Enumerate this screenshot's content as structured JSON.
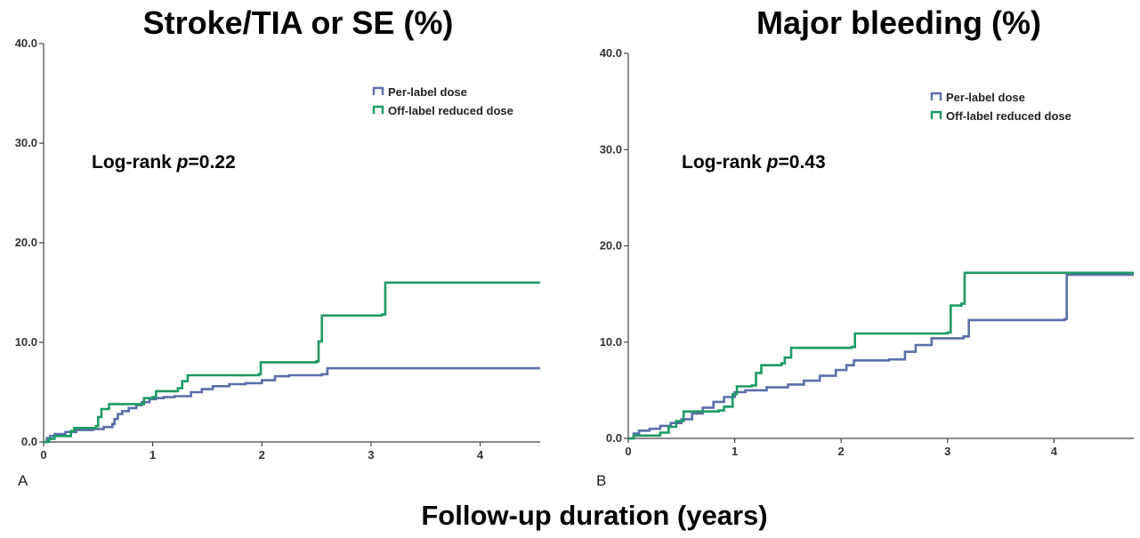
{
  "figure": {
    "xlabel": "Follow-up duration (years)",
    "colors": {
      "per_label": "#5a6fa8",
      "off_label": "#1e9a64"
    }
  },
  "chart_data": [
    {
      "type": "line",
      "panel_label": "A",
      "title": "Stroke/TIA or SE (%)",
      "annotation": {
        "prefix": "Log-rank ",
        "italic": "p",
        "suffix": "=0.22"
      },
      "xlim": [
        0,
        4.55
      ],
      "ylim": [
        0,
        40
      ],
      "x_ticks": [
        0,
        1,
        2,
        3,
        4
      ],
      "y_ticks": [
        0,
        10,
        20,
        30,
        40
      ],
      "y_tick_labels": [
        "0.0",
        "10.0",
        "20.0",
        "30.0",
        "40.0"
      ],
      "legend_position": "top-right",
      "series": [
        {
          "name": "Per-label dose",
          "color": "#5a6fa8",
          "points": [
            [
              0,
              0
            ],
            [
              0.03,
              0.4
            ],
            [
              0.06,
              0.6
            ],
            [
              0.1,
              0.8
            ],
            [
              0.2,
              1.0
            ],
            [
              0.3,
              1.2
            ],
            [
              0.45,
              1.3
            ],
            [
              0.55,
              1.5
            ],
            [
              0.63,
              1.8
            ],
            [
              0.65,
              2.3
            ],
            [
              0.68,
              2.8
            ],
            [
              0.72,
              3.1
            ],
            [
              0.78,
              3.4
            ],
            [
              0.85,
              3.7
            ],
            [
              0.9,
              4.0
            ],
            [
              0.97,
              4.3
            ],
            [
              1.03,
              4.4
            ],
            [
              1.1,
              4.5
            ],
            [
              1.2,
              4.6
            ],
            [
              1.35,
              5.0
            ],
            [
              1.45,
              5.3
            ],
            [
              1.55,
              5.6
            ],
            [
              1.7,
              5.8
            ],
            [
              1.85,
              5.9
            ],
            [
              2.0,
              6.2
            ],
            [
              2.12,
              6.6
            ],
            [
              2.25,
              6.7
            ],
            [
              2.55,
              6.8
            ],
            [
              2.6,
              7.4
            ],
            [
              4.55,
              7.4
            ]
          ]
        },
        {
          "name": "Off-label reduced dose",
          "color": "#1e9a64",
          "points": [
            [
              0,
              0
            ],
            [
              0.05,
              0.3
            ],
            [
              0.1,
              0.6
            ],
            [
              0.25,
              1.1
            ],
            [
              0.28,
              1.4
            ],
            [
              0.48,
              1.6
            ],
            [
              0.5,
              2.5
            ],
            [
              0.53,
              3.3
            ],
            [
              0.6,
              3.8
            ],
            [
              0.9,
              3.8
            ],
            [
              0.92,
              4.4
            ],
            [
              1.0,
              4.5
            ],
            [
              1.03,
              5.1
            ],
            [
              1.23,
              5.4
            ],
            [
              1.27,
              6.1
            ],
            [
              1.32,
              6.7
            ],
            [
              1.97,
              6.8
            ],
            [
              1.99,
              8.0
            ],
            [
              2.5,
              8.1
            ],
            [
              2.52,
              10.1
            ],
            [
              2.55,
              12.7
            ],
            [
              3.1,
              12.8
            ],
            [
              3.13,
              16.0
            ],
            [
              4.55,
              16.0
            ]
          ]
        }
      ]
    },
    {
      "type": "line",
      "panel_label": "B",
      "title": "Major bleeding (%)",
      "annotation": {
        "prefix": "Log-rank ",
        "italic": "p",
        "suffix": "=0.43"
      },
      "xlim": [
        0,
        4.75
      ],
      "ylim": [
        0,
        40
      ],
      "x_ticks": [
        0,
        1,
        2,
        3,
        4
      ],
      "y_ticks": [
        0,
        10,
        20,
        30,
        40
      ],
      "y_tick_labels": [
        "0.0",
        "10.0",
        "20.0",
        "30.0",
        "40.0"
      ],
      "legend_position": "top-right",
      "series": [
        {
          "name": "Per-label dose",
          "color": "#5a6fa8",
          "points": [
            [
              0,
              0
            ],
            [
              0.05,
              0.5
            ],
            [
              0.1,
              0.8
            ],
            [
              0.2,
              1.0
            ],
            [
              0.3,
              1.3
            ],
            [
              0.4,
              1.6
            ],
            [
              0.5,
              2.0
            ],
            [
              0.6,
              2.6
            ],
            [
              0.7,
              3.2
            ],
            [
              0.8,
              3.8
            ],
            [
              0.9,
              4.3
            ],
            [
              1.0,
              4.8
            ],
            [
              1.1,
              5.0
            ],
            [
              1.3,
              5.3
            ],
            [
              1.5,
              5.6
            ],
            [
              1.65,
              6.0
            ],
            [
              1.8,
              6.5
            ],
            [
              1.95,
              7.1
            ],
            [
              2.05,
              7.6
            ],
            [
              2.12,
              8.1
            ],
            [
              2.45,
              8.2
            ],
            [
              2.6,
              9.0
            ],
            [
              2.7,
              9.7
            ],
            [
              2.85,
              10.4
            ],
            [
              3.15,
              10.6
            ],
            [
              3.2,
              12.3
            ],
            [
              4.1,
              12.4
            ],
            [
              4.12,
              17.0
            ],
            [
              4.75,
              17.0
            ]
          ]
        },
        {
          "name": "Off-label reduced dose",
          "color": "#1e9a64",
          "points": [
            [
              0,
              0
            ],
            [
              0.05,
              0.3
            ],
            [
              0.3,
              0.6
            ],
            [
              0.38,
              1.2
            ],
            [
              0.45,
              1.8
            ],
            [
              0.52,
              2.8
            ],
            [
              0.85,
              2.9
            ],
            [
              0.9,
              3.3
            ],
            [
              0.98,
              4.6
            ],
            [
              1.02,
              5.4
            ],
            [
              1.16,
              5.5
            ],
            [
              1.2,
              6.8
            ],
            [
              1.25,
              7.6
            ],
            [
              1.44,
              7.8
            ],
            [
              1.47,
              8.4
            ],
            [
              1.53,
              9.4
            ],
            [
              2.1,
              9.5
            ],
            [
              2.13,
              10.9
            ],
            [
              3.0,
              11.0
            ],
            [
              3.03,
              13.8
            ],
            [
              3.13,
              14.0
            ],
            [
              3.16,
              17.2
            ],
            [
              4.75,
              17.2
            ]
          ]
        }
      ]
    }
  ]
}
